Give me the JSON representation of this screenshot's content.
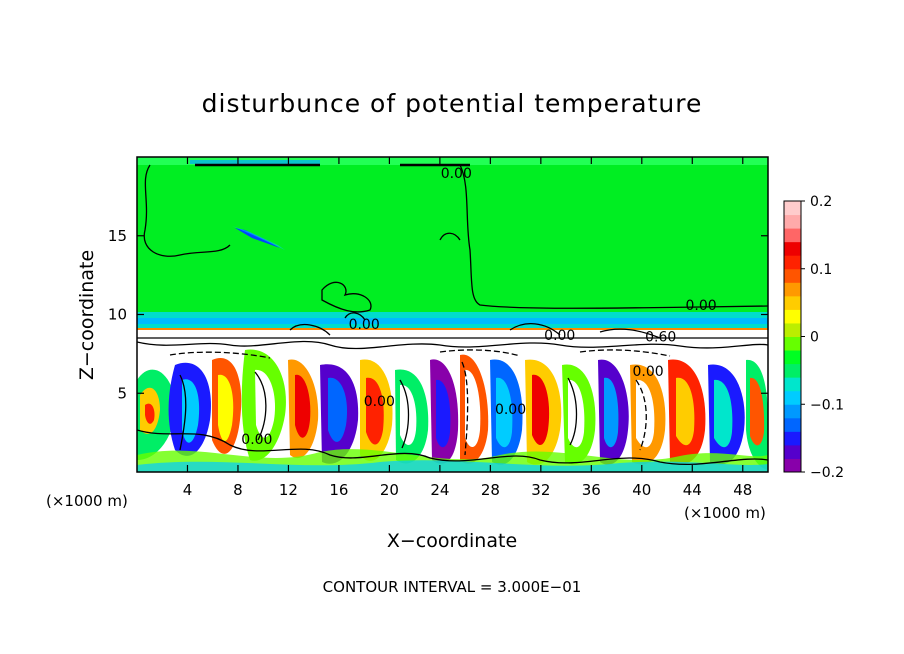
{
  "chart_data": {
    "type": "heatmap",
    "title": "disturbunce of potential temperature",
    "xlabel": "X−coordinate",
    "ylabel": "Z−coordinate",
    "x_unit_left": "(×1000 m)",
    "x_unit_right": "(×1000 m)",
    "footer": "CONTOUR INTERVAL = 3.000E−01",
    "xlim": [
      0,
      50
    ],
    "ylim": [
      0,
      20
    ],
    "x_ticks": [
      4,
      8,
      12,
      16,
      20,
      24,
      28,
      32,
      36,
      40,
      44,
      48
    ],
    "y_ticks": [
      5,
      10,
      15
    ],
    "colorbar": {
      "range": [
        -0.2,
        0.2
      ],
      "ticks": [
        {
          "value": 0.2,
          "label": "0.2"
        },
        {
          "value": 0.1,
          "label": "0.1"
        },
        {
          "value": 0,
          "label": "0"
        },
        {
          "value": -0.1,
          "label": "−0.1"
        },
        {
          "value": -0.2,
          "label": "−0.2"
        }
      ],
      "colors": [
        "#8800aa",
        "#5500cc",
        "#1a1aff",
        "#0066ff",
        "#0099ff",
        "#00ccff",
        "#00e6cc",
        "#00ee66",
        "#00ff22",
        "#66ff00",
        "#bbee00",
        "#ffff00",
        "#ffcc00",
        "#ff9900",
        "#ff5500",
        "#ff2200",
        "#ee0000",
        "#ff6666",
        "#ffaaaa",
        "#ffcccc"
      ]
    },
    "contour_labels": [
      {
        "x": 25.3,
        "z": 19.0,
        "text": "0.00"
      },
      {
        "x": 44.7,
        "z": 10.6,
        "text": "0.00"
      },
      {
        "x": 33.5,
        "z": 8.7,
        "text": "0.00"
      },
      {
        "x": 41.5,
        "z": 8.6,
        "text": "0.60"
      },
      {
        "x": 40.5,
        "z": 6.4,
        "text": "0.00"
      },
      {
        "x": 18.0,
        "z": 9.4,
        "text": "0.00"
      },
      {
        "x": 19.2,
        "z": 4.5,
        "text": "0.00"
      },
      {
        "x": 29.6,
        "z": 4.0,
        "text": "0.00"
      },
      {
        "x": 9.5,
        "z": 2.1,
        "text": "0.00"
      }
    ]
  }
}
